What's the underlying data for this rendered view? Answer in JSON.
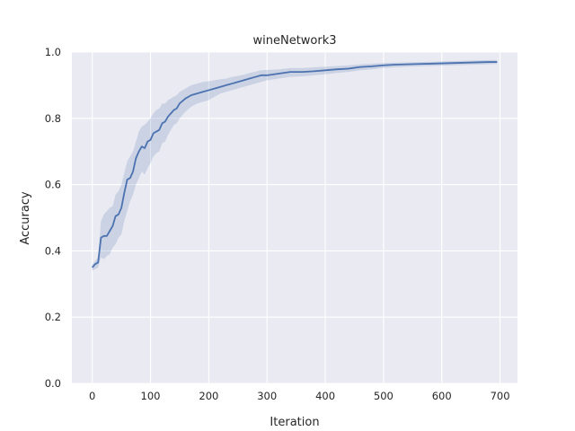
{
  "chart_data": {
    "type": "line",
    "title": "wineNetwork3",
    "xlabel": "Iteration",
    "ylabel": "Accuracy",
    "xlim": [
      -35,
      730
    ],
    "ylim": [
      0.0,
      1.0
    ],
    "xticks": [
      0,
      100,
      200,
      300,
      400,
      500,
      600,
      700
    ],
    "yticks": [
      0.0,
      0.2,
      0.4,
      0.6,
      0.8,
      1.0
    ],
    "xtick_labels": [
      "0",
      "100",
      "200",
      "300",
      "400",
      "500",
      "600",
      "700"
    ],
    "ytick_labels": [
      "0.0",
      "0.2",
      "0.4",
      "0.6",
      "0.8",
      "1.0"
    ],
    "grid": true,
    "colors": {
      "background": "#eaeaf2",
      "grid": "#ffffff",
      "line": "#4c72b0",
      "band": "#4c72b0"
    },
    "series": [
      {
        "x": [
          0,
          5,
          10,
          15,
          20,
          25,
          30,
          35,
          40,
          45,
          50,
          55,
          60,
          65,
          70,
          75,
          80,
          85,
          90,
          95,
          100,
          105,
          110,
          115,
          120,
          125,
          130,
          135,
          140,
          145,
          150,
          160,
          170,
          180,
          190,
          200,
          210,
          220,
          230,
          240,
          250,
          260,
          270,
          280,
          290,
          300,
          320,
          340,
          360,
          380,
          400,
          420,
          440,
          460,
          480,
          500,
          520,
          540,
          560,
          580,
          600,
          620,
          640,
          660,
          680,
          695
        ],
        "y": [
          0.35,
          0.36,
          0.365,
          0.44,
          0.445,
          0.445,
          0.46,
          0.475,
          0.505,
          0.51,
          0.53,
          0.575,
          0.615,
          0.62,
          0.64,
          0.68,
          0.7,
          0.715,
          0.71,
          0.73,
          0.735,
          0.755,
          0.76,
          0.765,
          0.785,
          0.79,
          0.805,
          0.815,
          0.825,
          0.83,
          0.845,
          0.86,
          0.87,
          0.875,
          0.88,
          0.885,
          0.89,
          0.895,
          0.9,
          0.905,
          0.91,
          0.915,
          0.92,
          0.925,
          0.93,
          0.93,
          0.935,
          0.94,
          0.94,
          0.942,
          0.945,
          0.948,
          0.95,
          0.955,
          0.957,
          0.96,
          0.962,
          0.963,
          0.964,
          0.965,
          0.966,
          0.967,
          0.968,
          0.969,
          0.97,
          0.97
        ],
        "y_lower": [
          0.34,
          0.345,
          0.35,
          0.38,
          0.375,
          0.385,
          0.39,
          0.41,
          0.42,
          0.44,
          0.45,
          0.49,
          0.52,
          0.55,
          0.57,
          0.6,
          0.62,
          0.64,
          0.63,
          0.65,
          0.665,
          0.685,
          0.695,
          0.7,
          0.725,
          0.73,
          0.75,
          0.765,
          0.78,
          0.785,
          0.8,
          0.82,
          0.835,
          0.845,
          0.85,
          0.855,
          0.865,
          0.875,
          0.88,
          0.885,
          0.89,
          0.895,
          0.9,
          0.905,
          0.91,
          0.915,
          0.92,
          0.925,
          0.927,
          0.93,
          0.933,
          0.937,
          0.94,
          0.945,
          0.948,
          0.952,
          0.954,
          0.956,
          0.957,
          0.958,
          0.959,
          0.96,
          0.961,
          0.962,
          0.963,
          0.964
        ],
        "y_upper": [
          0.36,
          0.37,
          0.38,
          0.49,
          0.51,
          0.52,
          0.53,
          0.535,
          0.57,
          0.58,
          0.6,
          0.635,
          0.67,
          0.685,
          0.7,
          0.73,
          0.76,
          0.775,
          0.78,
          0.79,
          0.8,
          0.815,
          0.825,
          0.83,
          0.845,
          0.845,
          0.855,
          0.86,
          0.865,
          0.87,
          0.88,
          0.89,
          0.9,
          0.905,
          0.91,
          0.912,
          0.915,
          0.918,
          0.92,
          0.925,
          0.928,
          0.932,
          0.937,
          0.941,
          0.945,
          0.946,
          0.948,
          0.952,
          0.952,
          0.954,
          0.956,
          0.958,
          0.96,
          0.963,
          0.965,
          0.967,
          0.968,
          0.969,
          0.97,
          0.971,
          0.972,
          0.973,
          0.974,
          0.975,
          0.976,
          0.976
        ]
      }
    ]
  }
}
